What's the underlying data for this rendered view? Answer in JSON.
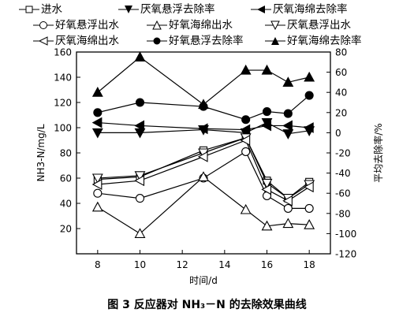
{
  "chart_data": {
    "type": "line",
    "x": [
      8,
      10,
      13,
      15,
      16,
      17,
      18
    ],
    "xlabel": "时间/d",
    "ylabel_left": "NH3-N/mg/L",
    "ylabel_right": "平均去除率/%",
    "xlim": [
      7,
      19
    ],
    "ylim_left": [
      0,
      160
    ],
    "ylim_right": [
      -120,
      80
    ],
    "xticks": [
      8,
      10,
      12,
      14,
      16,
      18
    ],
    "yticks_left": [
      20,
      40,
      60,
      80,
      100,
      120,
      140,
      160
    ],
    "yticks_right": [
      -120,
      -100,
      -80,
      -60,
      -40,
      -20,
      0,
      20,
      40,
      60,
      80
    ],
    "grid": false,
    "legend_position": "top",
    "series": [
      {
        "name": "进水",
        "axis": "left",
        "marker": "square-open",
        "values": [
          59,
          61,
          82,
          92,
          58,
          44,
          57
        ]
      },
      {
        "name": "厌氧悬浮去除率",
        "axis": "right",
        "marker": "tri-down-filled",
        "values": [
          0,
          0,
          3,
          0,
          10,
          -1,
          2
        ]
      },
      {
        "name": "厌氧海绵去除率",
        "axis": "right",
        "marker": "tri-left-filled",
        "values": [
          10,
          7,
          4,
          3,
          7,
          7,
          5
        ]
      },
      {
        "name": "好氧悬浮出水",
        "axis": "left",
        "marker": "circle-open",
        "values": [
          48,
          44,
          60,
          81,
          46,
          36,
          36
        ]
      },
      {
        "name": "好氧海绵出水",
        "axis": "left",
        "marker": "tri-up-open",
        "values": [
          37,
          16,
          61,
          35,
          22,
          24,
          23
        ]
      },
      {
        "name": "厌氧悬浮出水",
        "axis": "left",
        "marker": "tri-down-open",
        "values": [
          60,
          62,
          80,
          92,
          56,
          44,
          55
        ]
      },
      {
        "name": "厌氧海绵出水",
        "axis": "left",
        "marker": "tri-left-open",
        "values": [
          55,
          58,
          77,
          90,
          51,
          42,
          53
        ]
      },
      {
        "name": "好氧悬浮去除率",
        "axis": "right",
        "marker": "circle-filled",
        "values": [
          20,
          30,
          26,
          13,
          21,
          19,
          37
        ]
      },
      {
        "name": "好氧海绵去除率",
        "axis": "right",
        "marker": "tri-up-filled",
        "values": [
          40,
          75,
          28,
          62,
          62,
          50,
          55
        ]
      }
    ]
  },
  "legend": {
    "row1": [
      "进水",
      "厌氧悬浮去除率",
      "厌氧海绵去除率"
    ],
    "row2": [
      "好氧悬浮出水",
      "好氧海绵出水",
      "厌氧悬浮出水"
    ],
    "row3": [
      "厌氧海绵出水",
      "好氧悬浮去除率",
      "好氧海绵去除率"
    ]
  },
  "caption": "图 3    反应器对 NH₃－N 的去除效果曲线"
}
